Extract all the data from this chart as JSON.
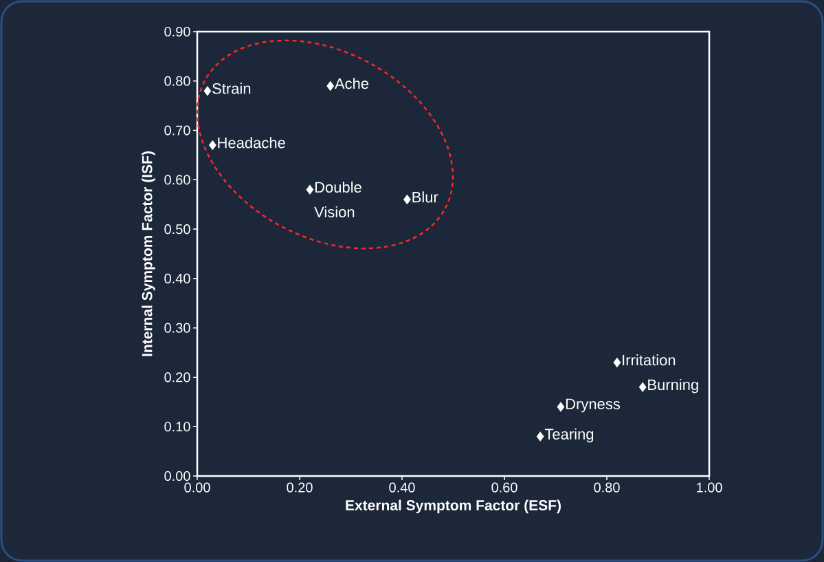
{
  "chart_data": {
    "type": "scatter",
    "xlabel": "External Symptom Factor (ESF)",
    "ylabel": "Internal Symptom Factor (ISF)",
    "x": [
      0.02,
      0.26,
      0.03,
      0.22,
      0.41,
      0.82,
      0.87,
      0.71,
      0.67
    ],
    "series": [
      {
        "color": "#ffffff",
        "values": [
          0.78,
          0.79,
          0.67,
          0.58,
          0.56,
          0.23,
          0.18,
          0.14,
          0.08
        ]
      }
    ],
    "marker": "diamond",
    "grid": false,
    "xlim": [
      0,
      1
    ],
    "ylim": [
      0,
      0.9
    ],
    "xticks": [
      {
        "value": 0,
        "label": "0.00"
      },
      {
        "value": 0.2,
        "label": "0.20"
      },
      {
        "value": 0.4,
        "label": "0.40"
      },
      {
        "value": 0.6,
        "label": "0.60"
      },
      {
        "value": 0.8,
        "label": "0.80"
      },
      {
        "value": 1,
        "label": "1.00"
      }
    ],
    "yticks": [
      {
        "value": 0,
        "label": "0.00"
      },
      {
        "value": 0.1,
        "label": "0.10"
      },
      {
        "value": 0.2,
        "label": "0.20"
      },
      {
        "value": 0.3,
        "label": "0.30"
      },
      {
        "value": 0.4,
        "label": "0.40"
      },
      {
        "value": 0.5,
        "label": "0.50"
      },
      {
        "value": 0.6,
        "label": "0.60"
      },
      {
        "value": 0.7,
        "label": "0.70"
      },
      {
        "value": 0.8,
        "label": "0.80"
      },
      {
        "value": 0.9,
        "label": "0.90"
      }
    ],
    "annotations": [
      {
        "text": "Strain",
        "x": 0.02,
        "y": 0.78
      },
      {
        "text": "Ache",
        "x": 0.26,
        "y": 0.79
      },
      {
        "text": "Headache",
        "x": 0.03,
        "y": 0.67
      },
      {
        "text": "Double Vision",
        "x": 0.22,
        "y": 0.58
      },
      {
        "text": "Blur",
        "x": 0.41,
        "y": 0.56
      },
      {
        "text": "Irritation",
        "x": 0.82,
        "y": 0.23
      },
      {
        "text": "Burning",
        "x": 0.87,
        "y": 0.18
      },
      {
        "text": "Dryness",
        "x": 0.71,
        "y": 0.14
      },
      {
        "text": "Tearing",
        "x": 0.67,
        "y": 0.08
      }
    ]
  }
}
